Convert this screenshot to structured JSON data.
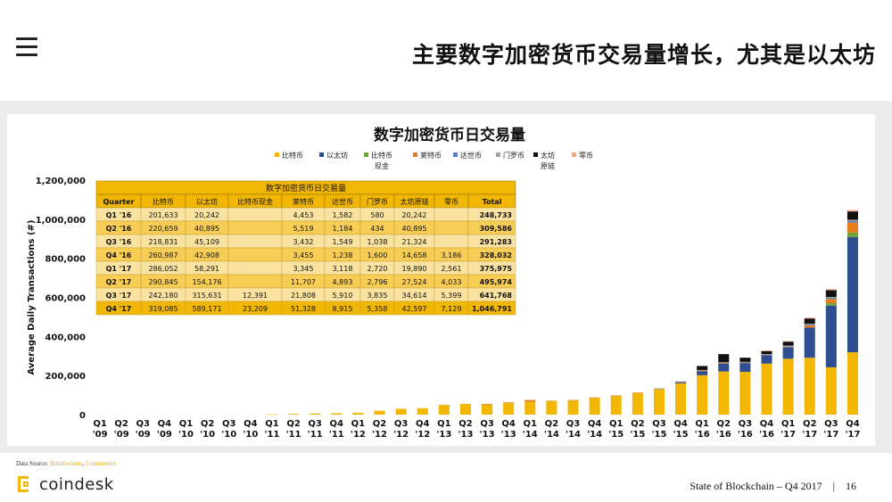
{
  "header": {
    "menu_icon": "hamburger-menu-icon",
    "headline": "主要数字加密货币交易量增长，尤其是以太坊"
  },
  "colors": {
    "比特币": "#f2b705",
    "以太坊": "#2e4f8f",
    "比特币现金": "#70a43a",
    "莱特币": "#e87d1e",
    "达世币": "#5b7fbf",
    "门罗币": "#a5a5a5",
    "太坊原链": "#111111",
    "零币": "#f4a582",
    "table_header": "#f2b705",
    "table_row_dark": "#f7cd55",
    "table_row_light": "#fae3a0",
    "table_total_row": "#f2b705"
  },
  "chart_data": {
    "type": "bar",
    "stacked": true,
    "title": "数字加密货币日交易量",
    "ylabel": "Average Daily Transactions (#)",
    "xlabel": "",
    "ylim": [
      0,
      1200000
    ],
    "yticks": [
      "0",
      "200,000",
      "400,000",
      "600,000",
      "800,000",
      "1,000,000",
      "1,200,000"
    ],
    "grid": false,
    "legend_position": "top",
    "categories": [
      [
        "Q1",
        "'09"
      ],
      [
        "Q2",
        "'09"
      ],
      [
        "Q3",
        "'09"
      ],
      [
        "Q4",
        "'09"
      ],
      [
        "Q1",
        "'10"
      ],
      [
        "Q2",
        "'10"
      ],
      [
        "Q3",
        "'10"
      ],
      [
        "Q4",
        "'10"
      ],
      [
        "Q1",
        "'11"
      ],
      [
        "Q2",
        "'11"
      ],
      [
        "Q3",
        "'11"
      ],
      [
        "Q4",
        "'11"
      ],
      [
        "Q1",
        "'12"
      ],
      [
        "Q2",
        "'12"
      ],
      [
        "Q3",
        "'12"
      ],
      [
        "Q4",
        "'12"
      ],
      [
        "Q1",
        "'13"
      ],
      [
        "Q2",
        "'13"
      ],
      [
        "Q3",
        "'13"
      ],
      [
        "Q4",
        "'13"
      ],
      [
        "Q1",
        "'14"
      ],
      [
        "Q2",
        "'14"
      ],
      [
        "Q3",
        "'14"
      ],
      [
        "Q4",
        "'14"
      ],
      [
        "Q1",
        "'15"
      ],
      [
        "Q2",
        "'15"
      ],
      [
        "Q3",
        "'15"
      ],
      [
        "Q4",
        "'15"
      ],
      [
        "Q1",
        "'16"
      ],
      [
        "Q2",
        "'16"
      ],
      [
        "Q3",
        "'16"
      ],
      [
        "Q4",
        "'16"
      ],
      [
        "Q1",
        "'17"
      ],
      [
        "Q2",
        "'17"
      ],
      [
        "Q3",
        "'17"
      ],
      [
        "Q4",
        "'17"
      ]
    ],
    "series": [
      {
        "name": "比特币",
        "values": [
          0,
          0,
          0,
          0,
          0,
          0,
          0,
          0,
          2000,
          4000,
          6000,
          7000,
          9000,
          20000,
          30000,
          33000,
          50000,
          55000,
          52000,
          60000,
          65000,
          68000,
          72000,
          85000,
          95000,
          110000,
          130000,
          160000,
          201633,
          220659,
          218831,
          260987,
          286052,
          290845,
          242180,
          319085
        ]
      },
      {
        "name": "以太坊",
        "values": [
          0,
          0,
          0,
          0,
          0,
          0,
          0,
          0,
          0,
          0,
          0,
          0,
          0,
          0,
          0,
          0,
          0,
          0,
          0,
          0,
          0,
          0,
          0,
          0,
          0,
          0,
          0,
          5000,
          20242,
          40895,
          45109,
          42908,
          58291,
          154176,
          315631,
          589171
        ]
      },
      {
        "name": "比特币现金",
        "values": [
          0,
          0,
          0,
          0,
          0,
          0,
          0,
          0,
          0,
          0,
          0,
          0,
          0,
          0,
          0,
          0,
          0,
          0,
          0,
          0,
          0,
          0,
          0,
          0,
          0,
          0,
          0,
          0,
          0,
          0,
          0,
          0,
          0,
          0,
          12391,
          23209
        ]
      },
      {
        "name": "莱特币",
        "values": [
          0,
          0,
          0,
          0,
          0,
          0,
          0,
          0,
          0,
          0,
          0,
          0,
          0,
          0,
          0,
          0,
          0,
          0,
          3000,
          3000,
          10000,
          3000,
          3000,
          3000,
          3000,
          3000,
          3000,
          4000,
          4453,
          5519,
          3432,
          3455,
          3345,
          11707,
          21808,
          51328
        ]
      },
      {
        "name": "达世币",
        "values": [
          0,
          0,
          0,
          0,
          0,
          0,
          0,
          0,
          0,
          0,
          0,
          0,
          0,
          0,
          0,
          0,
          0,
          0,
          0,
          0,
          0,
          0,
          0,
          0,
          0,
          0,
          500,
          800,
          1582,
          1184,
          1549,
          1238,
          3118,
          4893,
          5910,
          8915
        ]
      },
      {
        "name": "门罗币",
        "values": [
          0,
          0,
          0,
          0,
          0,
          0,
          0,
          0,
          0,
          0,
          0,
          0,
          0,
          0,
          0,
          0,
          0,
          0,
          0,
          0,
          0,
          0,
          0,
          0,
          0,
          0,
          300,
          400,
          580,
          434,
          1038,
          1600,
          2720,
          2796,
          3835,
          5358
        ]
      },
      {
        "name": "太坊原链",
        "values": [
          0,
          0,
          0,
          0,
          0,
          0,
          0,
          0,
          0,
          0,
          0,
          0,
          0,
          0,
          0,
          0,
          0,
          0,
          0,
          0,
          0,
          0,
          0,
          0,
          0,
          0,
          0,
          0,
          20242,
          40895,
          21324,
          14658,
          19890,
          27524,
          34614,
          42597
        ]
      },
      {
        "name": "零币",
        "values": [
          0,
          0,
          0,
          0,
          0,
          0,
          0,
          0,
          0,
          0,
          0,
          0,
          0,
          0,
          0,
          0,
          0,
          0,
          0,
          0,
          0,
          0,
          0,
          0,
          0,
          0,
          0,
          0,
          0,
          0,
          0,
          3186,
          2561,
          4033,
          5399,
          7129
        ]
      }
    ],
    "legend": [
      "比特币",
      "以太坊",
      "比特币现金",
      "莱特币",
      "达世币",
      "门罗币",
      "太坊原链",
      "零币"
    ],
    "inset_table": {
      "title": "数字加密货币日交易量",
      "columns": [
        "Quarter",
        "比特币",
        "以太坊",
        "比特币现金",
        "莱特币",
        "达世币",
        "门罗币",
        "太坊原链",
        "零币",
        "Total"
      ],
      "rows": [
        [
          "Q1 '16",
          "201,633",
          "20,242",
          "",
          "4,453",
          "1,582",
          "580",
          "20,242",
          "",
          "248,733"
        ],
        [
          "Q2 '16",
          "220,659",
          "40,895",
          "",
          "5,519",
          "1,184",
          "434",
          "40,895",
          "",
          "309,586"
        ],
        [
          "Q3 '16",
          "218,831",
          "45,109",
          "",
          "3,432",
          "1,549",
          "1,038",
          "21,324",
          "",
          "291,283"
        ],
        [
          "Q4 '16",
          "260,987",
          "42,908",
          "",
          "3,455",
          "1,238",
          "1,600",
          "14,658",
          "3,186",
          "328,032"
        ],
        [
          "Q1 '17",
          "286,052",
          "58,291",
          "",
          "3,345",
          "3,118",
          "2,720",
          "19,890",
          "2,561",
          "375,975"
        ],
        [
          "Q2 '17",
          "290,845",
          "154,176",
          "",
          "11,707",
          "4,893",
          "2,796",
          "27,524",
          "4,033",
          "495,974"
        ],
        [
          "Q3 '17",
          "242,180",
          "315,631",
          "12,391",
          "21,808",
          "5,910",
          "3,835",
          "34,614",
          "5,399",
          "641,768"
        ],
        [
          "Q4 '17",
          "319,085",
          "589,171",
          "23,209",
          "51,328",
          "8,915",
          "5,358",
          "42,597",
          "7,129",
          "1,046,791"
        ]
      ]
    }
  },
  "footer": {
    "source_label": "Data Source: ",
    "source_links": [
      "Bitinfocharts",
      "Coinmetrics"
    ],
    "source_sep": ", ",
    "logo_text": "coindesk",
    "report_title": "State of Blockchain – Q4 2017",
    "separator": "|",
    "page_number": "16"
  }
}
